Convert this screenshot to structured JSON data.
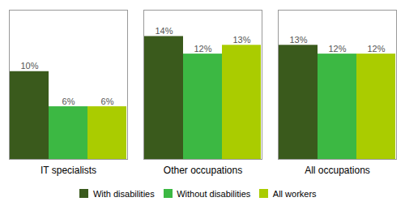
{
  "chart_data": {
    "type": "bar",
    "categories": [
      "IT specialists",
      "Other occupations",
      "All occupations"
    ],
    "series": [
      {
        "name": "With disabilities",
        "color": "#3a5a1c",
        "values": [
          10,
          14,
          13
        ],
        "value_labels": [
          "10%",
          "14%",
          "13%"
        ]
      },
      {
        "name": "Without disabilities",
        "color": "#3cb843",
        "values": [
          6,
          12,
          12
        ],
        "value_labels": [
          "6%",
          "12%",
          "12%"
        ]
      },
      {
        "name": "All workers",
        "color": "#aacc00",
        "values": [
          6,
          13,
          12
        ],
        "value_labels": [
          "6%",
          "13%",
          "12%"
        ]
      }
    ],
    "ylim": [
      0,
      17
    ],
    "yticks": [],
    "grid": false,
    "legend": "bottom",
    "data_labels": true,
    "tick_labels": "x"
  }
}
